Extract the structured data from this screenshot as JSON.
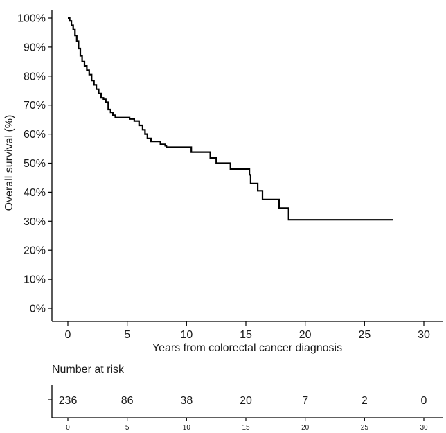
{
  "chart_data": {
    "type": "line",
    "subtype": "kaplan-meier-step",
    "xlabel": "Years from colorectal cancer diagnosis",
    "ylabel": "Overall survival (%)",
    "xlim": [
      0,
      30
    ],
    "ylim": [
      0,
      100
    ],
    "x_ticks": [
      0,
      5,
      10,
      15,
      20,
      25,
      30
    ],
    "x_tick_labels": [
      "0",
      "5",
      "10",
      "15",
      "20",
      "25",
      "30"
    ],
    "y_ticks": [
      0,
      10,
      20,
      30,
      40,
      50,
      60,
      70,
      80,
      90,
      100
    ],
    "y_tick_labels": [
      "0%",
      "10%",
      "20%",
      "30%",
      "40%",
      "50%",
      "60%",
      "70%",
      "80%",
      "90%",
      "100%"
    ],
    "grid": false,
    "series": [
      {
        "name": "Overall survival",
        "color": "#000000",
        "points": [
          [
            0,
            100
          ],
          [
            0.15,
            99
          ],
          [
            0.3,
            97.5
          ],
          [
            0.45,
            96
          ],
          [
            0.6,
            94
          ],
          [
            0.75,
            92
          ],
          [
            0.9,
            89.5
          ],
          [
            1.05,
            87
          ],
          [
            1.2,
            85
          ],
          [
            1.4,
            83.5
          ],
          [
            1.6,
            82
          ],
          [
            1.8,
            80.5
          ],
          [
            2.0,
            78.5
          ],
          [
            2.2,
            77
          ],
          [
            2.4,
            75.5
          ],
          [
            2.6,
            74
          ],
          [
            2.8,
            72.5
          ],
          [
            3.0,
            72
          ],
          [
            3.2,
            71
          ],
          [
            3.4,
            68.5
          ],
          [
            3.6,
            67.5
          ],
          [
            3.8,
            66.5
          ],
          [
            4.0,
            65.7
          ],
          [
            5.2,
            65.2
          ],
          [
            5.6,
            64.5
          ],
          [
            6.0,
            63
          ],
          [
            6.3,
            61.5
          ],
          [
            6.5,
            60
          ],
          [
            6.7,
            58.5
          ],
          [
            7.0,
            57.5
          ],
          [
            7.8,
            56.5
          ],
          [
            8.2,
            56
          ],
          [
            8.3,
            55.5
          ],
          [
            10.4,
            53.8
          ],
          [
            12.0,
            51.8
          ],
          [
            12.5,
            50
          ],
          [
            13.7,
            48
          ],
          [
            15.3,
            46
          ],
          [
            15.4,
            43
          ],
          [
            16.0,
            40.5
          ],
          [
            16.4,
            37.5
          ],
          [
            17.8,
            34.5
          ],
          [
            18.6,
            30.5
          ],
          [
            27.4,
            30.5
          ]
        ]
      }
    ],
    "risk_table": {
      "title": "Number at risk",
      "times": [
        0,
        5,
        10,
        15,
        20,
        25,
        30
      ],
      "time_labels": [
        "0",
        "5",
        "10",
        "15",
        "20",
        "25",
        "30"
      ],
      "counts": [
        "236",
        "86",
        "38",
        "20",
        "7",
        "2",
        "0"
      ]
    }
  }
}
